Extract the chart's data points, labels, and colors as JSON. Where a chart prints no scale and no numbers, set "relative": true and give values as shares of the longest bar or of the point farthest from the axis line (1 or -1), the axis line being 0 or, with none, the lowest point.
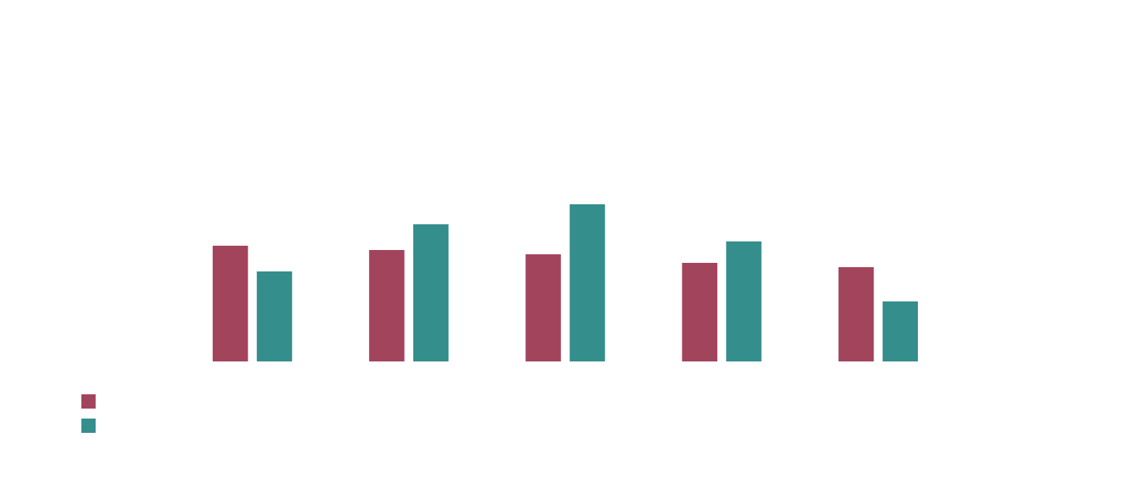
{
  "chart_data": {
    "type": "bar",
    "relative": true,
    "categories": [
      null,
      null,
      null,
      null,
      null
    ],
    "series": [
      {
        "color": "#a3445d",
        "values": [
          0.736,
          0.709,
          0.682,
          0.627,
          0.6
        ]
      },
      {
        "color": "#348e8c",
        "values": [
          0.573,
          0.873,
          1,
          0.764,
          0.382
        ]
      }
    ]
  }
}
